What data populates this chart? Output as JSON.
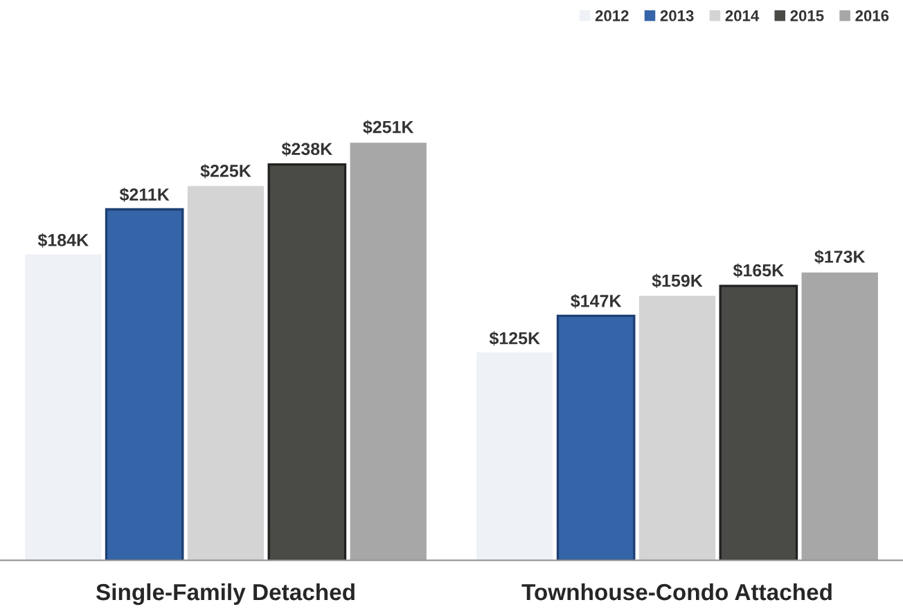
{
  "chart_data": {
    "type": "bar",
    "categories": [
      "Single-Family Detached",
      "Townhouse-Condo Attached"
    ],
    "series": [
      {
        "name": "2012",
        "color": "#eef1f6",
        "values": [
          184,
          125
        ],
        "value_labels": [
          "$184K",
          "$125K"
        ]
      },
      {
        "name": "2013",
        "color": "#3565a8",
        "values": [
          211,
          147
        ],
        "value_labels": [
          "$211K",
          "$147K"
        ]
      },
      {
        "name": "2014",
        "color": "#d4d4d4",
        "values": [
          225,
          159
        ],
        "value_labels": [
          "$225K",
          "$159K"
        ]
      },
      {
        "name": "2015",
        "color": "#4a4b47",
        "values": [
          238,
          165
        ],
        "value_labels": [
          "$238K",
          "$165K"
        ]
      },
      {
        "name": "2016",
        "color": "#a7a7a7",
        "values": [
          251,
          173
        ],
        "value_labels": [
          "$251K",
          "$173K"
        ]
      }
    ],
    "legend": "top right",
    "grid": false
  }
}
